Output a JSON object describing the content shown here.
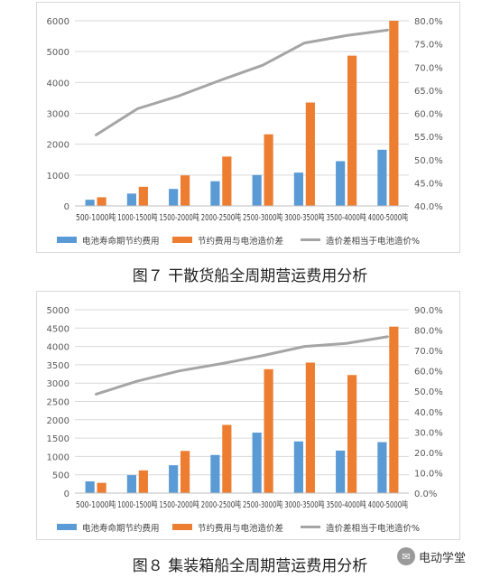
{
  "chart_data": [
    {
      "type": "bar",
      "caption": "图７ 干散货船全周期营运费用分析",
      "categories": [
        "500-1000吨",
        "1000-1500吨",
        "1500-2000吨",
        "2000-2500吨",
        "2500-3000吨",
        "3000-3500吨",
        "3500-4000吨",
        "4000-5000吨"
      ],
      "series": [
        {
          "name": "电池寿命期节约费用",
          "type": "bar",
          "axis": "left",
          "color": "#5B9BD5",
          "values": [
            200,
            400,
            550,
            800,
            1000,
            1080,
            1450,
            1820
          ]
        },
        {
          "name": "节约费用与电池造价差",
          "type": "bar",
          "axis": "left",
          "color": "#ED7D31",
          "values": [
            280,
            620,
            990,
            1600,
            2320,
            3350,
            4870,
            6000
          ]
        },
        {
          "name": "造价差相当于电池造价%",
          "type": "line",
          "axis": "right",
          "color": "#A5A5A5",
          "values": [
            55.3,
            61.0,
            63.8,
            67.2,
            70.4,
            75.2,
            76.8,
            78.0
          ]
        }
      ],
      "ylim": [
        0,
        6000
      ],
      "yticks": [
        0,
        1000,
        2000,
        3000,
        4000,
        5000,
        6000
      ],
      "y2lim": [
        40.0,
        80.0
      ],
      "y2ticks": [
        "40.0%",
        "45.0%",
        "50.0%",
        "55.0%",
        "60.0%",
        "65.0%",
        "70.0%",
        "75.0%",
        "80.0%"
      ],
      "grid": true,
      "legend": "bottom"
    },
    {
      "type": "bar",
      "caption": "图８ 集装箱船全周期营运费用分析",
      "categories": [
        "500-1000吨",
        "1000-1500吨",
        "1500-2000吨",
        "2000-2500吨",
        "2500-3000吨",
        "3000-3500吨",
        "3500-4000吨",
        "4000-5000吨"
      ],
      "series": [
        {
          "name": "电池寿命期节约费用",
          "type": "bar",
          "axis": "left",
          "color": "#5B9BD5",
          "values": [
            320,
            490,
            760,
            1040,
            1650,
            1410,
            1160,
            1390
          ]
        },
        {
          "name": "节约费用与电池造价差",
          "type": "bar",
          "axis": "left",
          "color": "#ED7D31",
          "values": [
            280,
            620,
            1150,
            1860,
            3380,
            3560,
            3220,
            4540
          ]
        },
        {
          "name": "造价差相当于电池造价%",
          "type": "line",
          "axis": "right",
          "color": "#A5A5A5",
          "values": [
            48.5,
            55.0,
            60.0,
            63.5,
            67.5,
            72.0,
            73.5,
            76.8
          ]
        }
      ],
      "ylim": [
        0,
        5000
      ],
      "yticks": [
        0,
        500,
        1000,
        1500,
        2000,
        2500,
        3000,
        3500,
        4000,
        4500,
        5000
      ],
      "y2lim": [
        0.0,
        90.0
      ],
      "y2ticks": [
        "0.0%",
        "10.0%",
        "20.0%",
        "30.0%",
        "40.0%",
        "50.0%",
        "60.0%",
        "70.0%",
        "80.0%",
        "90.0%"
      ],
      "grid": true,
      "legend": "bottom"
    }
  ],
  "watermark": {
    "icon": "chat-bubble-icon",
    "text": "电动学堂"
  }
}
